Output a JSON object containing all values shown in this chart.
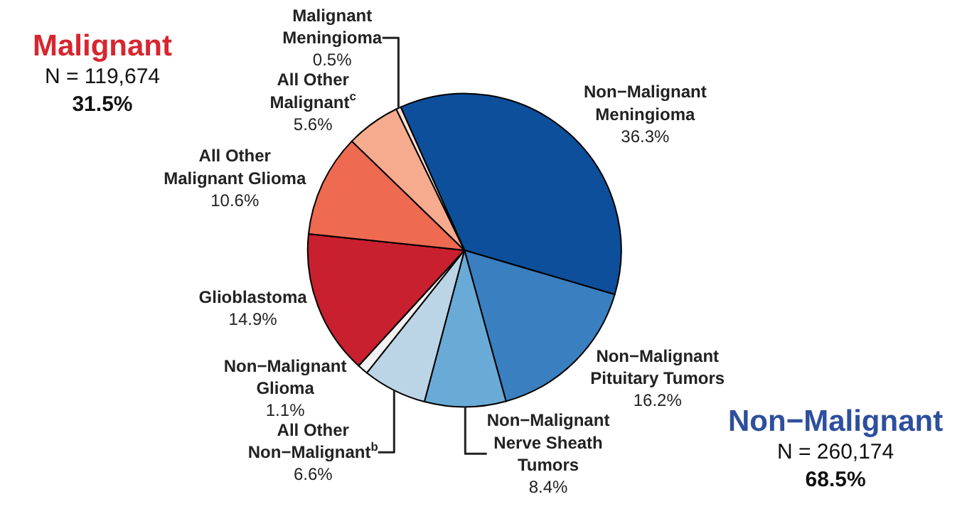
{
  "chart_data": {
    "type": "pie",
    "categories": [
      "Non−Malignant\nMeningioma",
      "Non−Malignant\nPituitary Tumors",
      "Non−Malignant\nNerve Sheath\nTumors",
      "All Other\nNon−Malignant$^{b}$",
      "Non−Malignant\nGlioma",
      "Glioblastoma",
      "All Other\nMalignant Glioma",
      "All Other\nMalignant$^{c}$",
      "Malignant\nMeningioma"
    ],
    "values": [
      36.3,
      16.2,
      8.4,
      6.6,
      1.1,
      14.9,
      10.6,
      5.6,
      0.5
    ],
    "value_labels": [
      "36.3%",
      "16.2%",
      "8.4%",
      "6.6%",
      "1.1%",
      "14.9%",
      "10.6%",
      "5.6%",
      "0.5%"
    ],
    "colors": [
      "#0d4f9a",
      "#3a7fbf",
      "#6aaad6",
      "#bcd5e6",
      "#f2f2f2",
      "#c8202f",
      "#ee6a50",
      "#f7ab8e",
      "#fde0d0"
    ],
    "annotations": [
      "Malignant\nN = 119,674\n31.5%",
      "Non−Malignant\nN = 260,174\n68.5%"
    ],
    "legend": false
  }
}
